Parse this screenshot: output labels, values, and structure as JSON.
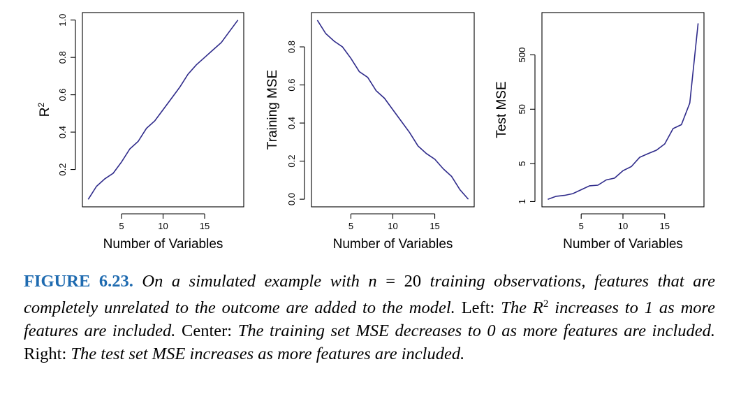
{
  "chart_data": [
    {
      "type": "line",
      "xlabel": "Number of Variables",
      "ylabel": "R",
      "ylabel_sup": "2",
      "x": [
        1,
        2,
        3,
        4,
        5,
        6,
        7,
        8,
        9,
        10,
        11,
        12,
        13,
        14,
        15,
        16,
        17,
        18,
        19
      ],
      "series": [
        {
          "values": [
            0.04,
            0.11,
            0.15,
            0.18,
            0.24,
            0.31,
            0.35,
            0.42,
            0.46,
            0.52,
            0.58,
            0.64,
            0.71,
            0.76,
            0.8,
            0.84,
            0.88,
            0.94,
            1.0
          ]
        }
      ],
      "xticks": [
        "5",
        "10",
        "15"
      ],
      "xtick_values": [
        5,
        10,
        15
      ],
      "yticks": [
        "0.2",
        "0.4",
        "0.6",
        "0.8",
        "1.0"
      ],
      "ytick_values": [
        0.2,
        0.4,
        0.6,
        0.8,
        1.0
      ],
      "xlim": [
        0.3,
        19.7
      ],
      "ylim": [
        0.0,
        1.04
      ],
      "yscale": "linear",
      "grid": false,
      "line_color": "#2e2a8a"
    },
    {
      "type": "line",
      "xlabel": "Number of Variables",
      "ylabel": "Training MSE",
      "x": [
        1,
        2,
        3,
        4,
        5,
        6,
        7,
        8,
        9,
        10,
        11,
        12,
        13,
        14,
        15,
        16,
        17,
        18,
        19
      ],
      "series": [
        {
          "values": [
            0.94,
            0.87,
            0.83,
            0.8,
            0.74,
            0.67,
            0.64,
            0.57,
            0.53,
            0.47,
            0.41,
            0.35,
            0.28,
            0.24,
            0.21,
            0.16,
            0.12,
            0.05,
            0.0
          ]
        }
      ],
      "xticks": [
        "5",
        "10",
        "15"
      ],
      "xtick_values": [
        5,
        10,
        15
      ],
      "yticks": [
        "0.0",
        "0.2",
        "0.4",
        "0.6",
        "0.8"
      ],
      "ytick_values": [
        0.0,
        0.2,
        0.4,
        0.6,
        0.8
      ],
      "xlim": [
        0.3,
        19.7
      ],
      "ylim": [
        -0.04,
        0.98
      ],
      "yscale": "linear",
      "grid": false,
      "line_color": "#2e2a8a"
    },
    {
      "type": "line",
      "xlabel": "Number of Variables",
      "ylabel": "Test MSE",
      "x": [
        1,
        2,
        3,
        4,
        5,
        6,
        7,
        8,
        9,
        10,
        11,
        12,
        13,
        14,
        15,
        16,
        17,
        18,
        19
      ],
      "series": [
        {
          "values": [
            1.1,
            1.25,
            1.3,
            1.4,
            1.65,
            1.95,
            2.0,
            2.5,
            2.7,
            3.7,
            4.4,
            6.5,
            7.6,
            8.8,
            11.5,
            22,
            26,
            65,
            1900
          ]
        }
      ],
      "xticks": [
        "5",
        "10",
        "15"
      ],
      "xtick_values": [
        5,
        10,
        15
      ],
      "yticks": [
        "1",
        "5",
        "50",
        "500"
      ],
      "ytick_values": [
        1,
        5,
        50,
        500
      ],
      "xlim": [
        0.3,
        19.7
      ],
      "ylim": [
        0.8,
        3000
      ],
      "yscale": "log",
      "grid": false,
      "line_color": "#2e2a8a"
    }
  ],
  "caption": {
    "label": "FIGURE 6.23.",
    "part1": "On a simulated example with",
    "n_var": "n",
    "eq": "= 20",
    "part2": "training observations, features that are completely unrelated to the outcome are added to the model.",
    "left_label": "Left:",
    "left_text_a": "The",
    "left_r": "R",
    "left_sup": "2",
    "left_text_b": "increases to 1 as more features are included.",
    "center_label": "Center:",
    "center_text": "The training set MSE decreases to 0 as more features are included.",
    "right_label": "Right:",
    "right_text": "The test set MSE increases as more features are included."
  }
}
